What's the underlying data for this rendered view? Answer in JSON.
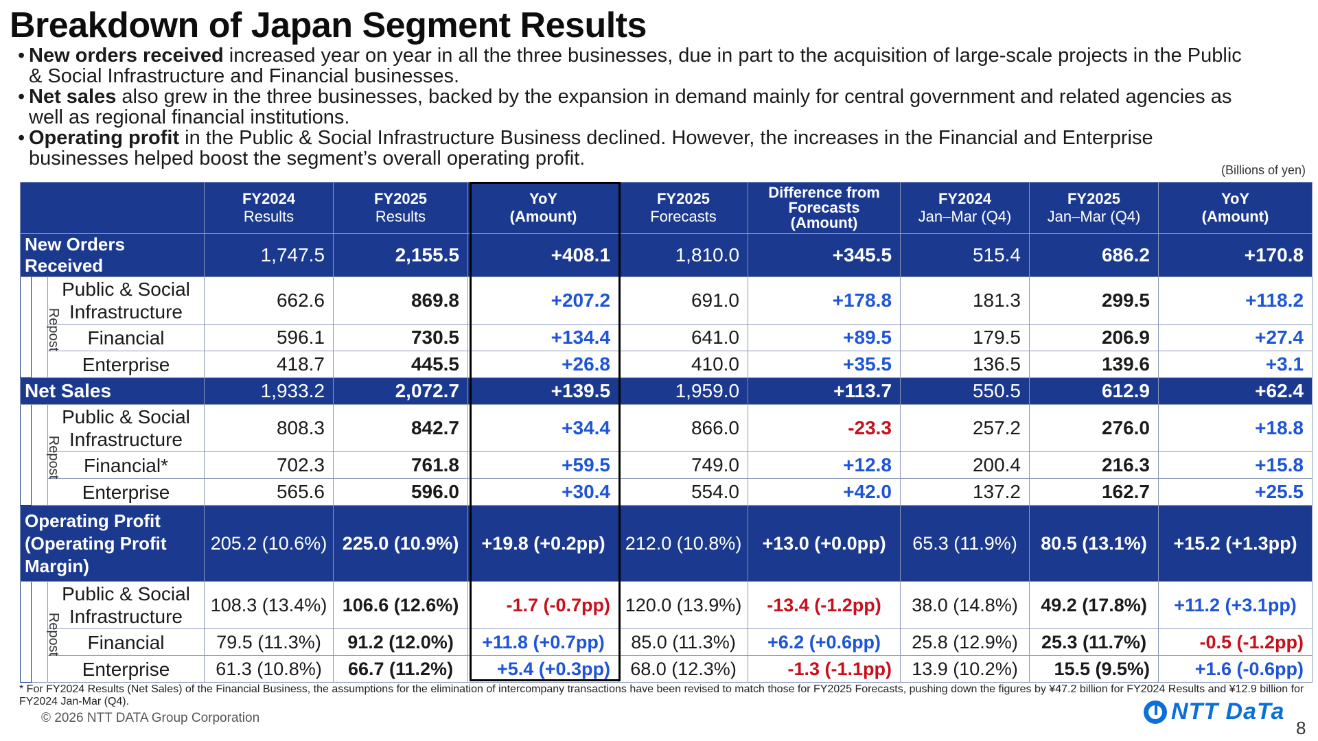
{
  "title": "Breakdown of Japan Segment Results",
  "bullets": [
    {
      "bold": "New orders received",
      "rest": " increased year on year in all the three businesses, due in part to the acquisition of large-scale projects in the Public & Social Infrastructure and Financial businesses."
    },
    {
      "bold": "Net sales",
      "rest": " also grew in the three businesses, backed by the expansion in demand mainly for central government and related agencies as well as regional financial institutions."
    },
    {
      "bold": "Operating profit",
      "rest": " in the Public & Social Infrastructure Business declined. However, the increases in the Financial and Enterprise businesses helped boost the segment’s overall operating profit."
    }
  ],
  "units": "(Billions of yen)",
  "headers": [
    {
      "top": "FY2024",
      "bottom": "Results"
    },
    {
      "top": "FY2025",
      "bottom": "Results"
    },
    {
      "top": "YoY",
      "bottom": "(Amount)"
    },
    {
      "top": "FY2025",
      "bottom": "Forecasts"
    },
    {
      "top": "Difference from Forecasts",
      "bottom": "(Amount)"
    },
    {
      "top": "FY2024",
      "bottom": "Jan–Mar (Q4)"
    },
    {
      "top": "FY2025",
      "bottom": "Jan–Mar (Q4)"
    },
    {
      "top": "YoY",
      "bottom": "(Amount)"
    }
  ],
  "repost_label": "Repost",
  "new_orders": {
    "label": "New Orders Received",
    "values": [
      "1,747.5",
      "2,155.5",
      "+408.1",
      "1,810.0",
      "+345.5",
      "515.4",
      "686.2",
      "+170.8"
    ],
    "rows": [
      {
        "label": "Public & Social Infrastructure",
        "values": [
          "662.6",
          "869.8",
          "+207.2",
          "691.0",
          "+178.8",
          "181.3",
          "299.5",
          "+118.2"
        ]
      },
      {
        "label": "Financial",
        "values": [
          "596.1",
          "730.5",
          "+134.4",
          "641.0",
          "+89.5",
          "179.5",
          "206.9",
          "+27.4"
        ]
      },
      {
        "label": "Enterprise",
        "values": [
          "418.7",
          "445.5",
          "+26.8",
          "410.0",
          "+35.5",
          "136.5",
          "139.6",
          "+3.1"
        ]
      }
    ]
  },
  "net_sales": {
    "label": "Net Sales",
    "values": [
      "1,933.2",
      "2,072.7",
      "+139.5",
      "1,959.0",
      "+113.7",
      "550.5",
      "612.9",
      "+62.4"
    ],
    "rows": [
      {
        "label": "Public & Social Infrastructure",
        "values": [
          "808.3",
          "842.7",
          "+34.4",
          "866.0",
          "-23.3",
          "257.2",
          "276.0",
          "+18.8"
        ]
      },
      {
        "label": "Financial*",
        "values": [
          "702.3",
          "761.8",
          "+59.5",
          "749.0",
          "+12.8",
          "200.4",
          "216.3",
          "+15.8"
        ]
      },
      {
        "label": "Enterprise",
        "values": [
          "565.6",
          "596.0",
          "+30.4",
          "554.0",
          "+42.0",
          "137.2",
          "162.7",
          "+25.5"
        ]
      }
    ]
  },
  "operating_profit": {
    "label": "Operating Profit (Operating Profit Margin)",
    "values": [
      "205.2 (10.6%)",
      "225.0 (10.9%)",
      "+19.8 (+0.2pp)",
      "212.0 (10.8%)",
      "+13.0 (+0.0pp)",
      "65.3 (11.9%)",
      "80.5 (13.1%)",
      "+15.2 (+1.3pp)"
    ],
    "rows": [
      {
        "label": "Public & Social Infrastructure",
        "values": [
          "108.3 (13.4%)",
          "106.6 (12.6%)",
          "-1.7 (-0.7pp)",
          "120.0 (13.9%)",
          "-13.4 (-1.2pp)",
          "38.0 (14.8%)",
          "49.2 (17.8%)",
          "+11.2 (+3.1pp)"
        ]
      },
      {
        "label": "Financial",
        "values": [
          "79.5 (11.3%)",
          "91.2 (12.0%)",
          "+11.8 (+0.7pp)",
          "85.0 (11.3%)",
          "+6.2 (+0.6pp)",
          "25.8 (12.9%)",
          "25.3 (11.7%)",
          "-0.5 (-1.2pp)"
        ]
      },
      {
        "label": "Enterprise",
        "values": [
          "61.3 (10.8%)",
          "66.7 (11.2%)",
          "+5.4 (+0.3pp)",
          "68.0 (12.3%)",
          "-1.3 (-1.1pp)",
          "13.9 (10.2%)",
          "15.5 (9.5%)",
          "+1.6 (-0.6pp)"
        ]
      }
    ]
  },
  "footnote": "* For FY2024 Results (Net Sales) of the Financial Business, the assumptions for the elimination of intercompany transactions have been revised to match those for FY2025 Forecasts, pushing down the figures by ¥47.2 billion for FY2024 Results and ¥12.9 billion for FY2024 Jan-Mar (Q4).",
  "copyright": "© 2026 NTT DATA Group Corporation",
  "logo_text": "NTT DaTa",
  "page_number": "8",
  "colors": {
    "header_bg": "#1b3a8f",
    "positive": "#1e55d6",
    "negative": "#c8101c",
    "logo": "#0a6fd8"
  }
}
